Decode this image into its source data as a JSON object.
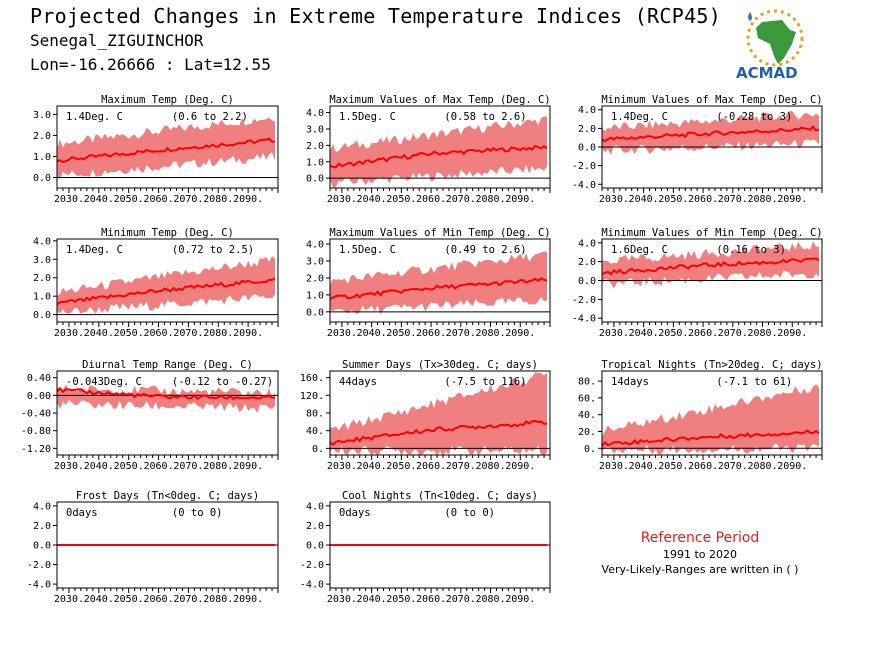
{
  "header": {
    "title": "Projected Changes in Extreme Temperature Indices (RCP45)",
    "station": "Senegal_ZIGUINCHOR",
    "coords": "Lon=-16.26666 : Lat=12.55"
  },
  "logo": {
    "text": "ACMAD",
    "icon": "africa-map-logo-icon"
  },
  "reference": {
    "title": "Reference Period",
    "years": "1991 to 2020",
    "note": "Very-Likely-Ranges are written in ( )"
  },
  "colors": {
    "line": "#ff0000",
    "band": "#f08080",
    "zero": "#000000"
  },
  "chart_data": [
    {
      "type": "area",
      "title": "Maximum Temp (Deg. C)",
      "value": "1.4Deg. C",
      "range": "(0.6 to 2.2)",
      "xticks": [
        "2030.",
        "2040.",
        "2050.",
        "2060.",
        "2070.",
        "2080.",
        "2090."
      ],
      "yticks": [
        "0.0",
        "1.0",
        "2.0",
        "3.0"
      ],
      "ylim": [
        -0.5,
        3.4
      ],
      "trend": [
        [
          2026,
          0.8
        ],
        [
          2060,
          1.3
        ],
        [
          2100,
          1.8
        ]
      ],
      "band_lo": [
        [
          2026,
          0.1
        ],
        [
          2100,
          1.0
        ]
      ],
      "band_hi": [
        [
          2026,
          1.6
        ],
        [
          2100,
          2.9
        ]
      ]
    },
    {
      "type": "area",
      "title": "Maximum Values of Max Temp (Deg. C)",
      "value": "1.5Deg. C",
      "range": "(0.58 to 2.6)",
      "xticks": [
        "2030.",
        "2040.",
        "2050.",
        "2060.",
        "2070.",
        "2080.",
        "2090."
      ],
      "yticks": [
        "0.0",
        "1.0",
        "2.0",
        "3.0",
        "4.0"
      ],
      "ylim": [
        -0.6,
        4.4
      ],
      "trend": [
        [
          2026,
          0.7
        ],
        [
          2060,
          1.5
        ],
        [
          2100,
          1.9
        ]
      ],
      "band_lo": [
        [
          2026,
          -0.3
        ],
        [
          2100,
          0.6
        ]
      ],
      "band_hi": [
        [
          2026,
          1.8
        ],
        [
          2100,
          3.6
        ]
      ]
    },
    {
      "type": "area",
      "title": "Minimum Values of Max Temp (Deg. C)",
      "value": "1.4Deg. C",
      "range": "(-0.28 to 3)",
      "xticks": [
        "2030.",
        "2040.",
        "2050.",
        "2060.",
        "2070.",
        "2080.",
        "2090."
      ],
      "yticks": [
        "-4.0",
        "-2.0",
        "0.0",
        "2.0",
        "4.0"
      ],
      "ylim": [
        -4.4,
        4.4
      ],
      "trend": [
        [
          2026,
          0.8
        ],
        [
          2060,
          1.4
        ],
        [
          2100,
          2.0
        ]
      ],
      "band_lo": [
        [
          2026,
          -0.4
        ],
        [
          2100,
          0.4
        ]
      ],
      "band_hi": [
        [
          2026,
          2.0
        ],
        [
          2100,
          3.6
        ]
      ]
    },
    {
      "type": "area",
      "title": "Minimum Temp (Deg. C)",
      "value": "1.4Deg. C",
      "range": "(0.72 to 2.5)",
      "xticks": [
        "2030.",
        "2040.",
        "2050.",
        "2060.",
        "2070.",
        "2080.",
        "2090."
      ],
      "yticks": [
        "0.0",
        "1.0",
        "2.0",
        "3.0",
        "4.0"
      ],
      "ylim": [
        -0.4,
        4.1
      ],
      "trend": [
        [
          2026,
          0.6
        ],
        [
          2060,
          1.3
        ],
        [
          2100,
          1.9
        ]
      ],
      "band_lo": [
        [
          2026,
          0.1
        ],
        [
          2100,
          1.0
        ]
      ],
      "band_hi": [
        [
          2026,
          1.2
        ],
        [
          2100,
          3.0
        ]
      ]
    },
    {
      "type": "area",
      "title": "Maximum Values of Min Temp (Deg. C)",
      "value": "1.5Deg. C",
      "range": "(0.49 to 2.6)",
      "xticks": [
        "2030.",
        "2040.",
        "2050.",
        "2060.",
        "2070.",
        "2080.",
        "2090."
      ],
      "yticks": [
        "0.0",
        "1.0",
        "2.0",
        "3.0",
        "4.0"
      ],
      "ylim": [
        -0.6,
        4.3
      ],
      "trend": [
        [
          2026,
          0.8
        ],
        [
          2060,
          1.4
        ],
        [
          2100,
          1.9
        ]
      ],
      "band_lo": [
        [
          2026,
          0.0
        ],
        [
          2100,
          0.7
        ]
      ],
      "band_hi": [
        [
          2026,
          1.8
        ],
        [
          2100,
          3.4
        ]
      ]
    },
    {
      "type": "area",
      "title": "Minimum Values of Min Temp (Deg. C)",
      "value": "1.6Deg. C",
      "range": "(0.16 to 3)",
      "xticks": [
        "2030.",
        "2040.",
        "2050.",
        "2060.",
        "2070.",
        "2080.",
        "2090."
      ],
      "yticks": [
        "-4.0",
        "-2.0",
        "0.0",
        "2.0",
        "4.0"
      ],
      "ylim": [
        -4.4,
        4.4
      ],
      "trend": [
        [
          2026,
          0.8
        ],
        [
          2060,
          1.6
        ],
        [
          2100,
          2.2
        ]
      ],
      "band_lo": [
        [
          2026,
          -0.4
        ],
        [
          2100,
          0.8
        ]
      ],
      "band_hi": [
        [
          2026,
          2.0
        ],
        [
          2100,
          3.8
        ]
      ]
    },
    {
      "type": "area",
      "title": "Diurnal Temp Range (Deg. C)",
      "value": "-0.043Deg. C",
      "range": "(-0.12 to -0.27)",
      "xticks": [
        "2030.",
        "2040.",
        "2050.",
        "2060.",
        "2070.",
        "2080.",
        "2090."
      ],
      "yticks": [
        "-1.20",
        "-0.80",
        "-0.40",
        "0.00",
        "0.40"
      ],
      "ylim": [
        -1.35,
        0.55
      ],
      "trend": [
        [
          2026,
          0.12
        ],
        [
          2060,
          -0.03
        ],
        [
          2100,
          -0.06
        ]
      ],
      "band_lo": [
        [
          2026,
          -0.2
        ],
        [
          2100,
          -0.3
        ]
      ],
      "band_hi": [
        [
          2026,
          0.15
        ],
        [
          2100,
          0.05
        ]
      ]
    },
    {
      "type": "area",
      "title": "Summer Days (Tx>30deg. C; days)",
      "value": "44days",
      "range": "(-7.5 to 116)",
      "xticks": [
        "2030.",
        "2040.",
        "2050.",
        "2060.",
        "2070.",
        "2080.",
        "2090."
      ],
      "yticks": [
        "0.",
        "40.",
        "80.",
        "120.",
        "160."
      ],
      "ylim": [
        -15,
        175
      ],
      "trend": [
        [
          2026,
          12
        ],
        [
          2060,
          42
        ],
        [
          2100,
          60
        ]
      ],
      "band_lo": [
        [
          2026,
          -5
        ],
        [
          2100,
          -5
        ]
      ],
      "band_hi": [
        [
          2026,
          40
        ],
        [
          2100,
          170
        ]
      ]
    },
    {
      "type": "area",
      "title": "Tropical Nights (Tn>20deg. C; days)",
      "value": "14days",
      "range": "(-7.1 to 61)",
      "xticks": [
        "2030.",
        "2040.",
        "2050.",
        "2060.",
        "2070.",
        "2080.",
        "2090."
      ],
      "yticks": [
        "0.",
        "20.",
        "40.",
        "60.",
        "80."
      ],
      "ylim": [
        -8,
        92
      ],
      "trend": [
        [
          2026,
          5
        ],
        [
          2060,
          13
        ],
        [
          2100,
          20
        ]
      ],
      "band_lo": [
        [
          2026,
          -2
        ],
        [
          2100,
          0
        ]
      ],
      "band_hi": [
        [
          2026,
          20
        ],
        [
          2100,
          75
        ]
      ]
    },
    {
      "type": "line",
      "title": "Frost Days (Tn<0deg. C; days)",
      "value": "0days",
      "range": "(0 to 0)",
      "xticks": [
        "2030.",
        "2040.",
        "2050.",
        "2060.",
        "2070.",
        "2080.",
        "2090."
      ],
      "yticks": [
        "-4.0",
        "-2.0",
        "0.0",
        "2.0",
        "4.0"
      ],
      "ylim": [
        -4.4,
        4.4
      ],
      "trend": [
        [
          2026,
          0
        ],
        [
          2100,
          0
        ]
      ],
      "band_lo": [
        [
          2026,
          0
        ],
        [
          2100,
          0
        ]
      ],
      "band_hi": [
        [
          2026,
          0
        ],
        [
          2100,
          0
        ]
      ]
    },
    {
      "type": "line",
      "title": "Cool Nights (Tn<10deg. C; days)",
      "value": "0days",
      "range": "(0 to 0)",
      "xticks": [
        "2030.",
        "2040.",
        "2050.",
        "2060.",
        "2070.",
        "2080.",
        "2090."
      ],
      "yticks": [
        "-4.0",
        "-2.0",
        "0.0",
        "2.0",
        "4.0"
      ],
      "ylim": [
        -4.4,
        4.4
      ],
      "trend": [
        [
          2026,
          0
        ],
        [
          2100,
          0
        ]
      ],
      "band_lo": [
        [
          2026,
          0
        ],
        [
          2100,
          0
        ]
      ],
      "band_hi": [
        [
          2026,
          0
        ],
        [
          2100,
          0
        ]
      ]
    }
  ]
}
